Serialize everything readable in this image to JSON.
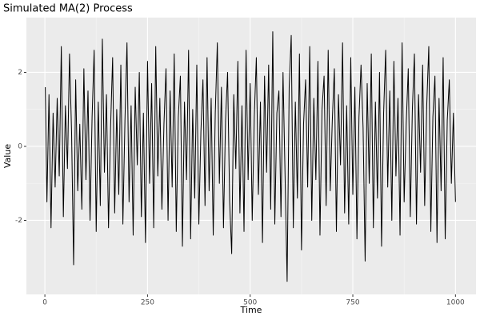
{
  "chart_data": {
    "type": "line",
    "title": "Simulated MA(2) Process",
    "x_label": "Time",
    "y_label": "Value",
    "color": "#000000",
    "x": [
      1,
      5,
      10,
      15,
      20,
      25,
      30,
      35,
      40,
      45,
      50,
      55,
      60,
      65,
      70,
      75,
      80,
      85,
      90,
      95,
      100,
      105,
      110,
      115,
      120,
      125,
      130,
      135,
      140,
      145,
      150,
      155,
      160,
      165,
      170,
      175,
      180,
      185,
      190,
      195,
      200,
      205,
      210,
      215,
      220,
      225,
      230,
      235,
      240,
      245,
      250,
      255,
      260,
      265,
      270,
      275,
      280,
      285,
      290,
      295,
      300,
      305,
      310,
      315,
      320,
      325,
      330,
      335,
      340,
      345,
      350,
      355,
      360,
      365,
      370,
      375,
      380,
      385,
      390,
      395,
      400,
      405,
      410,
      415,
      420,
      425,
      430,
      435,
      440,
      445,
      450,
      455,
      460,
      465,
      470,
      475,
      480,
      485,
      490,
      495,
      500,
      505,
      510,
      515,
      520,
      525,
      530,
      535,
      540,
      545,
      550,
      555,
      560,
      565,
      570,
      575,
      580,
      585,
      590,
      595,
      600,
      605,
      610,
      615,
      620,
      625,
      630,
      635,
      640,
      645,
      650,
      655,
      660,
      665,
      670,
      675,
      680,
      685,
      690,
      695,
      700,
      705,
      710,
      715,
      720,
      725,
      730,
      735,
      740,
      745,
      750,
      755,
      760,
      765,
      770,
      775,
      780,
      785,
      790,
      795,
      800,
      805,
      810,
      815,
      820,
      825,
      830,
      835,
      840,
      845,
      850,
      855,
      860,
      865,
      870,
      875,
      880,
      885,
      890,
      895,
      900,
      905,
      910,
      915,
      920,
      925,
      930,
      935,
      940,
      945,
      950,
      955,
      960,
      965,
      970,
      975,
      980,
      985,
      990,
      995,
      1000
    ],
    "values": [
      1.6,
      -1.5,
      1.4,
      -2.2,
      0.9,
      -1.1,
      1.3,
      -0.8,
      2.7,
      -1.9,
      1.1,
      -0.6,
      2.5,
      0.4,
      -3.2,
      1.8,
      -1.2,
      0.6,
      -1.7,
      2.1,
      -0.9,
      1.5,
      -2.0,
      0.8,
      2.6,
      -2.3,
      1.2,
      -1.6,
      2.9,
      -0.7,
      1.4,
      -2.2,
      0.5,
      2.4,
      -1.8,
      1.0,
      -1.3,
      2.2,
      -2.1,
      0.7,
      2.8,
      -1.5,
      1.1,
      -2.4,
      1.6,
      -0.5,
      2.0,
      -1.9,
      0.9,
      -2.6,
      2.3,
      -1.0,
      1.7,
      -2.2,
      2.7,
      -0.8,
      1.3,
      -1.7,
      0.6,
      2.1,
      -2.0,
      1.5,
      -1.1,
      2.5,
      -2.3,
      0.8,
      1.9,
      -2.7,
      1.2,
      -0.9,
      2.6,
      -2.5,
      1.0,
      -1.4,
      2.2,
      -2.1,
      0.4,
      1.8,
      -1.6,
      2.4,
      -1.2,
      1.3,
      -2.4,
      0.9,
      2.8,
      -1.0,
      1.6,
      -2.2,
      0.7,
      2.0,
      -1.5,
      -2.9,
      1.4,
      -0.6,
      2.3,
      -1.8,
      1.1,
      -2.3,
      2.6,
      -0.9,
      1.7,
      -2.0,
      0.8,
      2.4,
      -1.3,
      1.2,
      -2.6,
      1.9,
      -0.7,
      2.2,
      -1.7,
      3.1,
      -2.1,
      0.9,
      1.5,
      -1.9,
      2.0,
      -0.8,
      -3.65,
      1.6,
      3.0,
      -2.2,
      1.2,
      -1.4,
      2.5,
      -2.8,
      0.6,
      1.8,
      -1.1,
      2.7,
      -2.0,
      1.3,
      -0.9,
      2.3,
      -2.4,
      1.0,
      1.9,
      -1.6,
      2.6,
      -1.2,
      0.7,
      2.1,
      -2.3,
      1.4,
      -0.5,
      2.8,
      -1.8,
      1.1,
      -2.1,
      2.4,
      -1.3,
      1.6,
      -2.5,
      0.8,
      2.2,
      0.5,
      -3.1,
      1.7,
      -1.0,
      2.5,
      -2.2,
      1.2,
      -1.4,
      2.0,
      -2.7,
      0.9,
      2.6,
      -1.1,
      1.5,
      -2.0,
      2.3,
      -0.8,
      1.3,
      -2.4,
      2.8,
      -1.5,
      0.6,
      2.1,
      -1.9,
      1.0,
      2.5,
      -2.1,
      1.4,
      -0.7,
      2.2,
      -1.6,
      1.1,
      2.7,
      -2.3,
      0.8,
      1.9,
      -2.6,
      1.3,
      -1.2,
      2.4,
      -2.5,
      0.7,
      1.8,
      -1.0,
      0.9,
      -1.5
    ],
    "xlim": [
      -45,
      1050
    ],
    "xticks": [
      0,
      250,
      500,
      750,
      1000
    ],
    "ylim": [
      -4.0,
      3.48
    ],
    "yticks": [
      -2,
      0,
      2
    ],
    "grid": true
  }
}
